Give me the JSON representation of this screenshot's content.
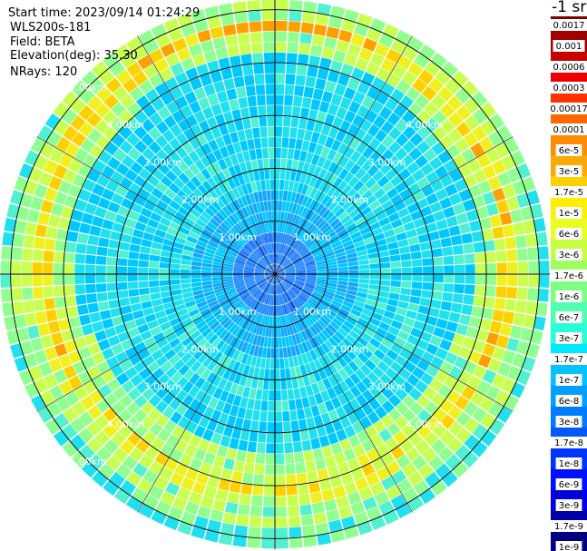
{
  "header": {
    "start_time": "Start time: 2023/09/14 01:24:29",
    "instrument": "WLS200s-181",
    "field": "Field: BETA",
    "elevation": "Elevation(deg): 35.30",
    "nrays": "NRays: 120"
  },
  "colorbar": {
    "unit": "-1 sr",
    "labels": [
      "0.0017",
      "0.001",
      "0.0006",
      "0.0003",
      "0.00017",
      "0.0001",
      "6e-5",
      "3e-5",
      "1.7e-5",
      "1e-5",
      "6e-6",
      "3e-6",
      "1.7e-6",
      "1e-6",
      "6e-7",
      "3e-7",
      "1.7e-7",
      "1e-7",
      "6e-8",
      "3e-8",
      "1.7e-8",
      "1e-8",
      "6e-9",
      "3e-9",
      "1.7e-9",
      "1e-9"
    ],
    "colors": [
      "#800000",
      "#a00000",
      "#c80000",
      "#ee0000",
      "#ff3300",
      "#ff6600",
      "#ff8c00",
      "#ffaa00",
      "#ffd000",
      "#ffee00",
      "#e8ff20",
      "#c6ff40",
      "#a0ff60",
      "#7dff82",
      "#50ffb0",
      "#28ffd8",
      "#00e8ff",
      "#00c4ff",
      "#00a0ff",
      "#007cff",
      "#0058ff",
      "#0034ff",
      "#0010ff",
      "#0000dd",
      "#0000aa",
      "#000080"
    ]
  },
  "chart_data": {
    "type": "heatmap",
    "projection": "polar (PPI)",
    "field": "BETA",
    "elevation_deg": 35.3,
    "n_rays": 120,
    "max_range_km": 5.2,
    "range_rings_km": [
      1.0,
      2.0,
      3.0,
      4.0,
      5.0
    ],
    "ring_labels": [
      "1.00km",
      "2.00km",
      "3.00km",
      "4.00km",
      "5.00km"
    ],
    "spokes_deg": [
      0,
      30,
      60,
      90,
      120,
      150,
      180,
      210,
      240,
      270,
      300,
      330
    ],
    "colorbar_unit": "-1 sr",
    "colorbar_range": [
      1e-09,
      0.0017
    ],
    "colorscale": "log",
    "features": {
      "near_field_0_to_1km": "~1e-7",
      "mid_field_1_to_4km": "~1.7e-7 to 3e-7",
      "aerosol_ring_4.7_to_5.1km": "~1e-6 to 1e-5",
      "ring_peak_north_km": 4.7,
      "ring_peak_south_km": 4.1
    }
  }
}
